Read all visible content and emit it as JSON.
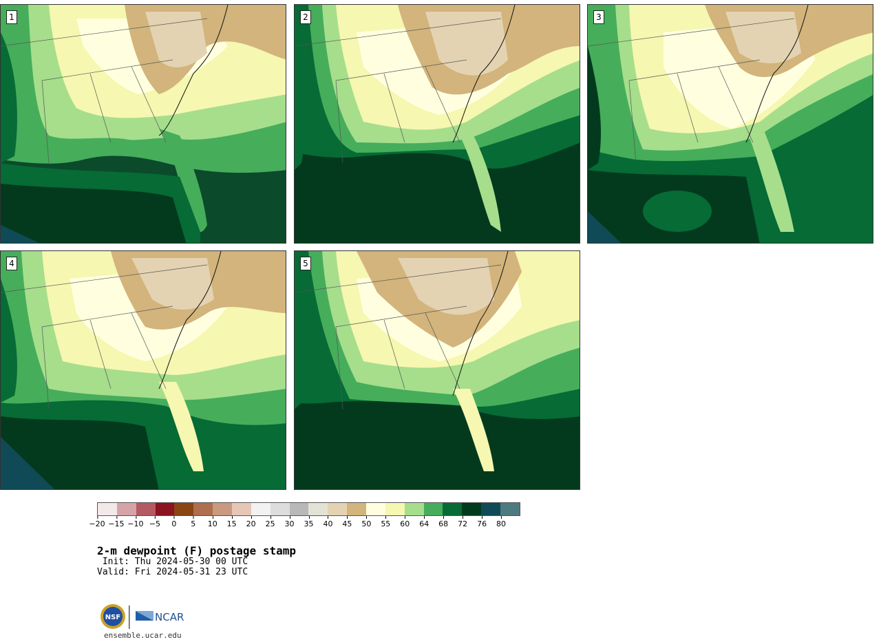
{
  "panels": [
    {
      "label": "1"
    },
    {
      "label": "2"
    },
    {
      "label": "3"
    },
    {
      "label": "4"
    },
    {
      "label": "5"
    }
  ],
  "colorbar": {
    "colors": [
      "#f4e9ea",
      "#d6a3a8",
      "#b35a63",
      "#8c1320",
      "#8b4513",
      "#ad6f4d",
      "#c99a80",
      "#e6c7b6",
      "#f2f2f2",
      "#dddddd",
      "#b8b8b8",
      "#e3e2d6",
      "#e4d3b2",
      "#d2b47c",
      "#ffffe0",
      "#f6f7b0",
      "#a6de8c",
      "#46ad5b",
      "#066b35",
      "#033a1e",
      "#104a57",
      "#4d7b80"
    ],
    "ticks": [
      "−20",
      "−15",
      "−10",
      "−5",
      "0",
      "5",
      "10",
      "15",
      "20",
      "25",
      "30",
      "35",
      "40",
      "45",
      "50",
      "55",
      "60",
      "64",
      "68",
      "72",
      "76",
      "80"
    ]
  },
  "title": "2-m dewpoint (F) postage stamp",
  "init": " Init: Thu 2024-05-30 00 UTC",
  "valid": "Valid: Fri 2024-05-31 23 UTC",
  "logos": {
    "nsf": "NSF",
    "ncar": "NCAR"
  },
  "footer": "ensemble.ucar.edu"
}
